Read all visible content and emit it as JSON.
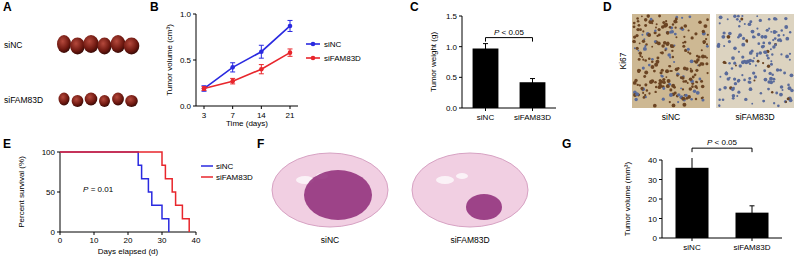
{
  "panels": [
    {
      "label": "A",
      "rows": [
        "siNC",
        "siFAM83D"
      ]
    },
    {
      "label": "D",
      "stain": "Ki67",
      "captions": [
        "siNC",
        "siFAM83D"
      ]
    },
    {
      "label": "F",
      "captions": [
        "siNC",
        "siFAM83D"
      ]
    }
  ],
  "chart_data": [
    {
      "type": "line",
      "title": "B",
      "x_label": "Time (days)",
      "y_label": "Tumor volume (cm³)",
      "categories": [
        "3",
        "7",
        "14",
        "21"
      ],
      "series": [
        {
          "name": "siNC",
          "color": "#2a2ae0",
          "marker": "circle",
          "values": [
            0.19,
            0.42,
            0.59,
            0.87
          ],
          "errors": [
            0.03,
            0.05,
            0.07,
            0.06
          ]
        },
        {
          "name": "siFAM83D",
          "color": "#e8262c",
          "marker": "circle",
          "values": [
            0.19,
            0.27,
            0.4,
            0.58
          ],
          "errors": [
            0.02,
            0.03,
            0.05,
            0.04
          ]
        }
      ],
      "ylim": [
        0,
        1
      ],
      "yticks": [
        {
          "value": 0,
          "label": "0.0"
        },
        {
          "value": 0.5,
          "label": "0.5"
        },
        {
          "value": 1,
          "label": "1.0"
        }
      ],
      "legend": "right"
    },
    {
      "type": "bar",
      "title": "C",
      "y_label": "Tumor weight (g)",
      "categories": [
        "siNC",
        "siFAM83D"
      ],
      "values": [
        0.97,
        0.42
      ],
      "errors": [
        0.08,
        0.06
      ],
      "color": "#000000",
      "ylim": [
        0,
        1.5
      ],
      "yticks": [
        {
          "value": 0,
          "label": "0.0"
        },
        {
          "value": 0.5,
          "label": "0.5"
        },
        {
          "value": 1,
          "label": "1.0"
        },
        {
          "value": 1.5,
          "label": "1.5"
        }
      ],
      "annotations": [
        "P < 0.05"
      ]
    },
    {
      "type": "step",
      "title": "E",
      "x_label": "Days elapsed (d)",
      "y_label": "Percent survival (%)",
      "series": [
        {
          "name": "siNC",
          "color": "#2a2ae0",
          "x": [
            0,
            23,
            24,
            26,
            27,
            30,
            32
          ],
          "values": [
            100,
            83.3,
            66.7,
            50,
            33.3,
            16.7,
            0
          ]
        },
        {
          "name": "siFAM83D",
          "color": "#e8262c",
          "x": [
            0,
            30,
            31,
            33,
            34,
            36,
            38
          ],
          "values": [
            100,
            83.3,
            66.7,
            50,
            33.3,
            16.7,
            0
          ]
        }
      ],
      "xlim": [
        0,
        40
      ],
      "xticks": [
        0,
        10,
        20,
        30,
        40
      ],
      "ylim": [
        0,
        100
      ],
      "yticks": [
        0,
        50,
        100
      ],
      "annotations": [
        "P = 0.01"
      ],
      "legend": "upper right"
    },
    {
      "type": "bar",
      "title": "G",
      "y_label": "Tumor volume (mm³)",
      "categories": [
        "siNC",
        "siFAM83D"
      ],
      "values": [
        36,
        13
      ],
      "errors": [
        7,
        3.5
      ],
      "color": "#000000",
      "ylim": [
        0,
        40
      ],
      "yticks": [
        0,
        10,
        20,
        30,
        40
      ],
      "annotations": [
        "P < 0.05"
      ]
    }
  ]
}
